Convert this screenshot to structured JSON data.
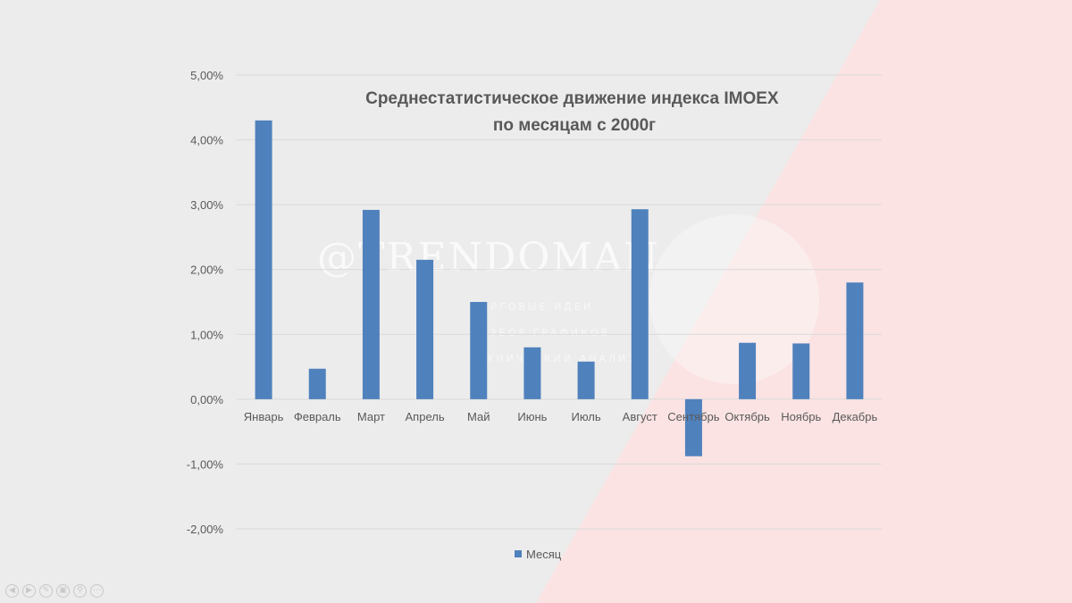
{
  "chart_data": {
    "type": "bar",
    "title": "Среднестатистическое движение индекса IMOEX\nпо месяцам с 2000г",
    "title_lines": [
      "Среднестатистическое движение индекса IMOEX",
      "по месяцам с 2000г"
    ],
    "categories": [
      "Январь",
      "Февраль",
      "Март",
      "Апрель",
      "Май",
      "Июнь",
      "Июль",
      "Август",
      "Сентябрь",
      "Октябрь",
      "Ноябрь",
      "Декабрь"
    ],
    "series": [
      {
        "name": "Месяц",
        "values": [
          4.3,
          0.47,
          2.92,
          2.15,
          1.5,
          0.8,
          0.58,
          2.93,
          -0.88,
          0.87,
          0.86,
          1.8
        ],
        "color": "#4f81bd"
      }
    ],
    "ylim": [
      -2,
      5
    ],
    "yticks": [
      5,
      4,
      3,
      2,
      1,
      0,
      -1,
      -2
    ],
    "ytick_labels": [
      "5,00%",
      "4,00%",
      "3,00%",
      "2,00%",
      "1,00%",
      "0,00%",
      "-1,00%",
      "-2,00%"
    ],
    "grid": true,
    "legend_position": "bottom",
    "xlabel": "",
    "ylabel": ""
  },
  "watermark": {
    "handle": "@TRENDOMAN",
    "lines": [
      "ТОРГОВЫЕ ИДЕИ",
      "РАЗБОР ГРАФИКОВ",
      "ТЕХНИЧЕСКИЙ АНАЛИЗ"
    ]
  },
  "colors": {
    "background": "#ececec",
    "wedge": "#fbe3e3",
    "bar": "#4f81bd",
    "grid": "#d9d9d9",
    "text": "#595959"
  },
  "controls": {
    "icons": [
      "prev-icon",
      "next-icon",
      "pen-icon",
      "slides-icon",
      "zoom-icon",
      "more-icon"
    ],
    "glyphs": [
      "◀",
      "▶",
      "✎",
      "▣",
      "⚲",
      "⋯"
    ]
  }
}
